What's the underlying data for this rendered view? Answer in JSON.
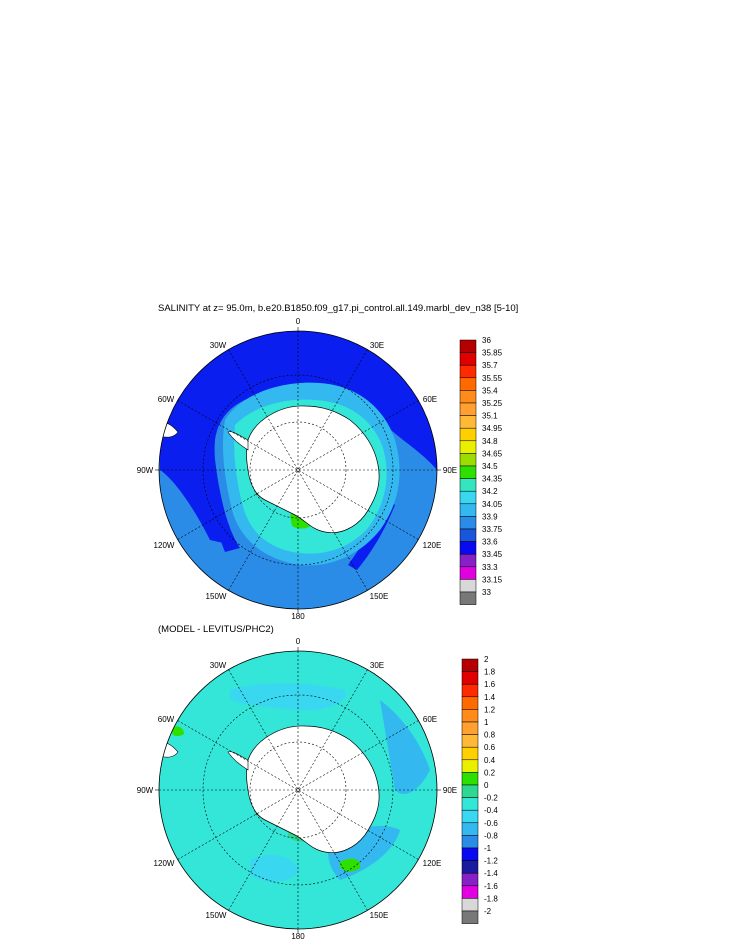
{
  "panel1": {
    "title": "SALINITY at z=  95.0m, b.e20.B1850.f09_g17.pi_control.all.149.marbl_dev_n38 [5-10]",
    "lon_labels": {
      "top": "0",
      "tr": "30E",
      "rt": "60E",
      "right": "90E",
      "rb": "120E",
      "br": "150E",
      "bottom": "180",
      "bl": "150W",
      "lb": "120W",
      "left": "90W",
      "lt": "60W",
      "tl": "30W"
    },
    "colorbar": {
      "labels": [
        "36",
        "35.85",
        "35.7",
        "35.55",
        "35.4",
        "35.25",
        "35.1",
        "34.95",
        "34.8",
        "34.65",
        "34.5",
        "34.35",
        "34.2",
        "34.05",
        "33.9",
        "33.75",
        "33.6",
        "33.45",
        "33.3",
        "33.15",
        "33"
      ],
      "colors": [
        "#b40000",
        "#e00000",
        "#ff2a00",
        "#ff6a00",
        "#ff8c1a",
        "#ffa030",
        "#ffb838",
        "#ffd000",
        "#e8f000",
        "#9cdc00",
        "#2ee000",
        "#33e6c0",
        "#3ad8f0",
        "#33b8f0",
        "#2a8ce6",
        "#1a56dc",
        "#0a0af0",
        "#8820c8",
        "#e000e0",
        "#d8d8d8",
        "#787878"
      ]
    }
  },
  "panel2": {
    "title": "(MODEL - LEVITUS/PHC2)",
    "lon_labels": {
      "top": "0",
      "tr": "30E",
      "rt": "60E",
      "right": "90E",
      "rb": "120E",
      "br": "150E",
      "bottom": "180",
      "bl": "150W",
      "lb": "120W",
      "left": "90W",
      "lt": "60W",
      "tl": "30W"
    },
    "colorbar": {
      "labels": [
        "2",
        "1.8",
        "1.6",
        "1.4",
        "1.2",
        "1",
        "0.8",
        "0.6",
        "0.4",
        "0.2",
        "0",
        "-0.2",
        "-0.4",
        "-0.6",
        "-0.8",
        "-1",
        "-1.2",
        "-1.4",
        "-1.6",
        "-1.8",
        "-2"
      ],
      "colors": [
        "#b40000",
        "#e00000",
        "#ff2a00",
        "#ff6a00",
        "#ff8c1a",
        "#ffa030",
        "#ffb838",
        "#ffd000",
        "#e8f000",
        "#2ee000",
        "#2ed890",
        "#33e6d8",
        "#3ad8f0",
        "#33b8f0",
        "#2a8ce6",
        "#0a0af0",
        "#1a1aa0",
        "#8820c8",
        "#e000e0",
        "#d8d8d8",
        "#787878"
      ]
    }
  },
  "colors": {
    "ocean_dark": "#1430e6",
    "ocean_mid": "#2a8ce6",
    "ocean_light": "#33b8f0",
    "ocean_cyan": "#33e6d8",
    "ocean_pale": "#3ad8f0",
    "land": "#ffffff"
  }
}
